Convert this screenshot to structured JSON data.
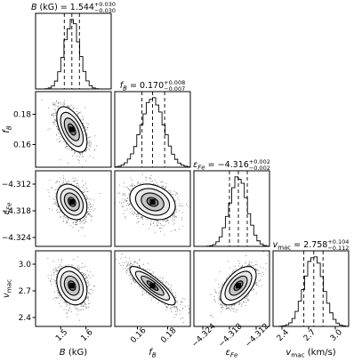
{
  "chart_data": {
    "type": "corner",
    "parameters": [
      {
        "key": "B",
        "title_name": "B (kG)",
        "median": "1.544",
        "err_plus": "+0.030",
        "err_minus": "−0.030",
        "axis_label": "B (kG)",
        "range": [
          1.4,
          1.7
        ],
        "mean": 1.544,
        "sigma": 0.03,
        "quantiles": [
          1.514,
          1.544,
          1.574
        ],
        "ticks": [
          {
            "v": 1.5,
            "t": "1.5"
          },
          {
            "v": 1.6,
            "t": "1.6"
          }
        ]
      },
      {
        "key": "fB",
        "title_name": "f_B",
        "median": "0.170",
        "err_plus": "+0.008",
        "err_minus": "−0.007",
        "axis_label": "f_B",
        "range": [
          0.145,
          0.195
        ],
        "mean": 0.17,
        "sigma": 0.0075,
        "quantiles": [
          0.163,
          0.17,
          0.178
        ],
        "ticks": [
          {
            "v": 0.16,
            "t": "0.16"
          },
          {
            "v": 0.18,
            "t": "0.18"
          }
        ]
      },
      {
        "key": "eFe",
        "title_name": "ε_Fe",
        "median": "−4.316",
        "err_plus": "+0.002",
        "err_minus": "−0.002",
        "axis_label": "ε_Fe",
        "range": [
          -4.326,
          -4.309
        ],
        "mean": -4.316,
        "sigma": 0.002,
        "quantiles": [
          -4.318,
          -4.316,
          -4.314
        ],
        "ticks": [
          {
            "v": -4.324,
            "t": "−4.324"
          },
          {
            "v": -4.318,
            "t": "−4.318"
          },
          {
            "v": -4.312,
            "t": "−4.312"
          }
        ]
      },
      {
        "key": "vmac",
        "title_name": "v_mac",
        "median": "2.758",
        "err_plus": "+0.104",
        "err_minus": "−0.112",
        "axis_label": "v_mac (km/s)",
        "range": [
          2.3,
          3.15
        ],
        "mean": 2.758,
        "sigma": 0.108,
        "quantiles": [
          2.646,
          2.758,
          2.862
        ],
        "ticks": [
          {
            "v": 2.4,
            "t": "2.4"
          },
          {
            "v": 2.7,
            "t": "2.7"
          },
          {
            "v": 3.0,
            "t": "3.0"
          }
        ]
      }
    ],
    "correlations": {
      "1-0": -0.55,
      "2-0": -0.3,
      "2-1": -0.25,
      "3-0": -0.25,
      "3-1": -0.85,
      "3-2": 0.55
    },
    "quantile_levels": [
      0.16,
      0.5,
      0.84
    ],
    "grid": false
  }
}
